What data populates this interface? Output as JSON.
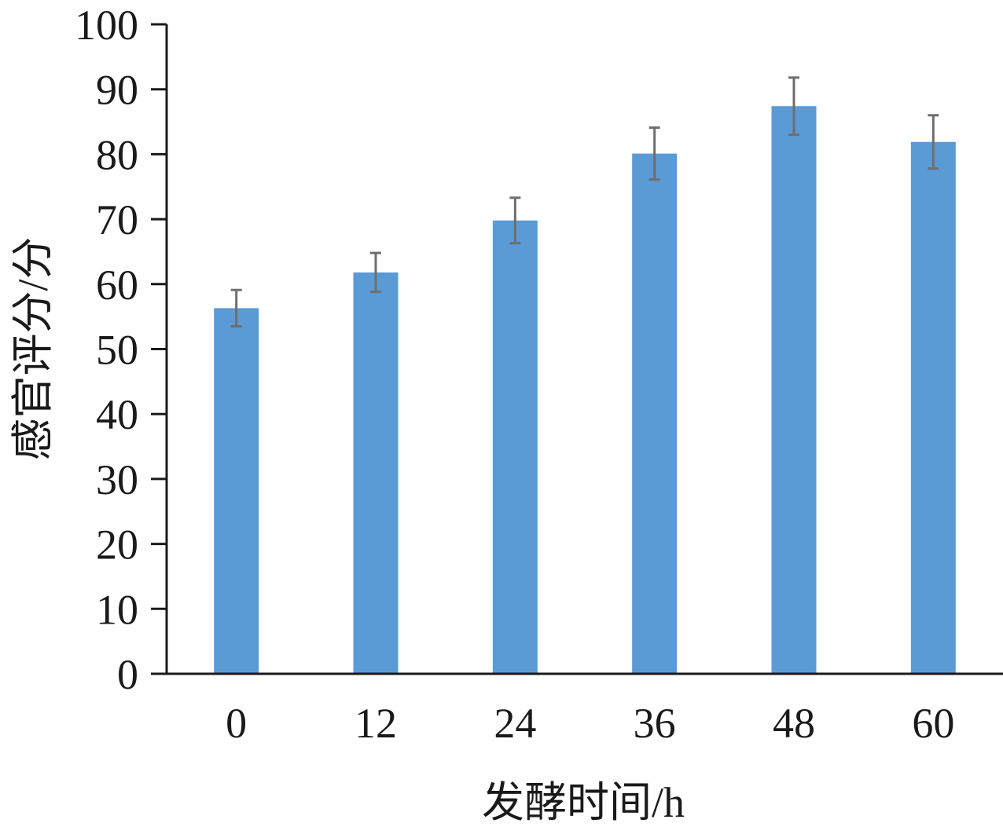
{
  "chart_data": {
    "type": "bar",
    "title": "",
    "xlabel": "发酵时间/h",
    "ylabel": "感官评分/分",
    "categories": [
      "0",
      "12",
      "24",
      "36",
      "48",
      "60"
    ],
    "series": [
      {
        "values": [
          56.3,
          61.8,
          69.8,
          80.1,
          87.4,
          81.9
        ],
        "errors": [
          2.8,
          3.0,
          3.5,
          4.0,
          4.4,
          4.1
        ],
        "color": "#5b9bd5"
      }
    ],
    "ylim": [
      0,
      100
    ],
    "yticks": [
      0,
      10,
      20,
      30,
      40,
      50,
      60,
      70,
      80,
      90,
      100
    ],
    "grid": false,
    "legend": "none",
    "error_bar_color": "#6e6e6e"
  }
}
